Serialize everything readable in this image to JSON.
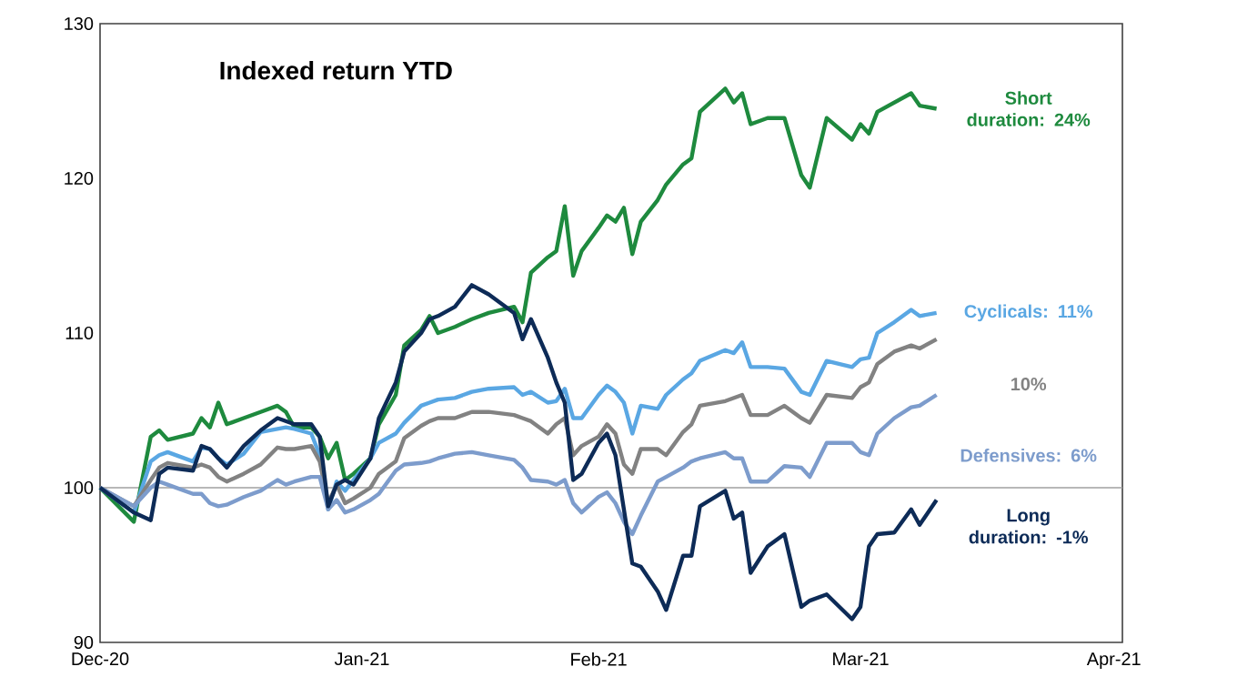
{
  "chart_data": {
    "type": "line",
    "title": "Indexed return YTD",
    "x": [
      "2020-12-31",
      "2021-01-04",
      "2021-01-06",
      "2021-01-07",
      "2021-01-08",
      "2021-01-11",
      "2021-01-12",
      "2021-01-13",
      "2021-01-14",
      "2021-01-15",
      "2021-01-17",
      "2021-01-19",
      "2021-01-21",
      "2021-01-22",
      "2021-01-23",
      "2021-01-25",
      "2021-01-26",
      "2021-01-27",
      "2021-01-28",
      "2021-01-29",
      "2021-01-30",
      "2021-02-01",
      "2021-02-02",
      "2021-02-04",
      "2021-02-05",
      "2021-02-07",
      "2021-02-08",
      "2021-02-09",
      "2021-02-11",
      "2021-02-13",
      "2021-02-15",
      "2021-02-18",
      "2021-02-19",
      "2021-02-20",
      "2021-02-22",
      "2021-02-23",
      "2021-02-24",
      "2021-02-25",
      "2021-02-26",
      "2021-02-28",
      "2021-03-01",
      "2021-03-02",
      "2021-03-03",
      "2021-03-04",
      "2021-03-05",
      "2021-03-07",
      "2021-03-08",
      "2021-03-10",
      "2021-03-11",
      "2021-03-12",
      "2021-03-15",
      "2021-03-16",
      "2021-03-17",
      "2021-03-18",
      "2021-03-20",
      "2021-03-22",
      "2021-03-24",
      "2021-03-25",
      "2021-03-27",
      "2021-03-30",
      "2021-03-31",
      "2021-04-01",
      "2021-04-02",
      "2021-04-04",
      "2021-04-06",
      "2021-04-07",
      "2021-04-09"
    ],
    "series": [
      {
        "name": "Short duration: 24%",
        "color": "#1e8a3e",
        "values": [
          100,
          97.8,
          103.3,
          103.7,
          103.1,
          103.5,
          104.5,
          103.9,
          105.5,
          104.1,
          104.5,
          104.9,
          105.3,
          104.9,
          103.9,
          103.9,
          103.3,
          101.9,
          102.9,
          100.5,
          100.9,
          101.9,
          104.1,
          106,
          109.2,
          110.2,
          111.1,
          110,
          110.4,
          110.9,
          111.3,
          111.7,
          110.7,
          113.9,
          114.9,
          115.3,
          118.2,
          113.7,
          115.3,
          116.8,
          117.6,
          117.2,
          118.1,
          115.1,
          117.2,
          118.6,
          119.6,
          120.9,
          121.3,
          124.3,
          125.8,
          124.9,
          125.5,
          123.5,
          123.9,
          123.9,
          120.2,
          119.4,
          123.9,
          122.5,
          123.5,
          122.9,
          124.3,
          124.9,
          125.5,
          124.7,
          124.5
        ]
      },
      {
        "name": "Cyclicals: 11%",
        "color": "#5aa7e3",
        "values": [
          100,
          98.4,
          101.7,
          102.1,
          102.3,
          101.7,
          102.6,
          102.5,
          101.9,
          101.5,
          102.2,
          103.6,
          103.8,
          103.9,
          103.8,
          103.5,
          102.1,
          98.6,
          100.4,
          99.8,
          100.5,
          101.9,
          102.9,
          103.5,
          104.2,
          105.3,
          105.5,
          105.7,
          105.8,
          106.2,
          106.4,
          106.5,
          106,
          106.2,
          105.5,
          105.6,
          106.4,
          104.5,
          104.5,
          106,
          106.6,
          106.2,
          105.5,
          103.5,
          105.3,
          105.1,
          106,
          107,
          107.4,
          108.2,
          108.9,
          108.7,
          109.4,
          107.8,
          107.8,
          107.7,
          106.2,
          106,
          108.2,
          107.8,
          108.3,
          108.4,
          110,
          110.7,
          111.5,
          111.1,
          111.3
        ]
      },
      {
        "name": "10%",
        "color": "#828282",
        "values": [
          100,
          98.8,
          100.5,
          101.3,
          101.6,
          101.3,
          101.5,
          101.3,
          100.7,
          100.4,
          100.9,
          101.5,
          102.6,
          102.5,
          102.5,
          102.7,
          101.7,
          99,
          100.2,
          99,
          99.3,
          100,
          100.9,
          101.7,
          103.2,
          104,
          104.3,
          104.5,
          104.5,
          104.9,
          104.9,
          104.7,
          104.5,
          104.3,
          103.5,
          104.1,
          104.5,
          102.1,
          102.7,
          103.3,
          104.1,
          103.5,
          101.5,
          100.9,
          102.5,
          102.5,
          102.1,
          103.6,
          104.1,
          105.3,
          105.6,
          105.8,
          106,
          104.7,
          104.7,
          105.3,
          104.5,
          104.2,
          106,
          105.8,
          106.5,
          106.8,
          108,
          108.8,
          109.2,
          109,
          109.6
        ]
      },
      {
        "name": "Defensives: 6%",
        "color": "#7d9ccc",
        "values": [
          100,
          98.8,
          100,
          100.4,
          100.2,
          99.6,
          99.6,
          99,
          98.8,
          98.9,
          99.4,
          99.8,
          100.5,
          100.2,
          100.4,
          100.7,
          100.7,
          98.6,
          99.2,
          98.4,
          98.6,
          99.2,
          99.6,
          101.1,
          101.5,
          101.6,
          101.7,
          101.9,
          102.2,
          102.3,
          102.1,
          101.8,
          101.3,
          100.5,
          100.4,
          100.2,
          100.5,
          99,
          98.4,
          99.4,
          99.7,
          99,
          97.8,
          97,
          98.2,
          100.4,
          100.7,
          101.3,
          101.7,
          101.9,
          102.3,
          101.9,
          101.9,
          100.4,
          100.4,
          101.4,
          101.3,
          100.7,
          102.9,
          102.9,
          102.3,
          102.1,
          103.5,
          104.5,
          105.2,
          105.3,
          106
        ]
      },
      {
        "name": "Long duration: -1%",
        "color": "#0d2b57",
        "values": [
          100,
          98.4,
          97.9,
          100.9,
          101.3,
          101.1,
          102.7,
          102.5,
          101.9,
          101.3,
          102.7,
          103.7,
          104.5,
          104.3,
          104.1,
          104.1,
          103.3,
          98.8,
          100.2,
          100.5,
          100.2,
          101.9,
          104.5,
          106.8,
          108.8,
          110,
          110.9,
          111.1,
          111.7,
          113.1,
          112.5,
          111.3,
          109.6,
          110.9,
          108.4,
          106.8,
          105.5,
          100.5,
          100.9,
          102.9,
          103.5,
          102.1,
          98.6,
          95.1,
          94.9,
          93.3,
          92.1,
          95.6,
          95.6,
          98.8,
          99.8,
          98,
          98.4,
          94.5,
          96.2,
          97,
          92.3,
          92.7,
          93.1,
          91.5,
          92.3,
          96.2,
          97,
          97.1,
          98.6,
          97.6,
          99.2
        ]
      }
    ],
    "xlim": [
      "2020-12-31",
      "2021-05-01"
    ],
    "xticks": [
      {
        "value": "2020-12-31",
        "label": "Dec-20"
      },
      {
        "value": "2021-01-31",
        "label": "Jan-21"
      },
      {
        "value": "2021-02-28",
        "label": "Feb-21"
      },
      {
        "value": "2021-03-31",
        "label": "Mar-21"
      },
      {
        "value": "2021-04-30",
        "label": "Apr-21"
      }
    ],
    "ylim": [
      90,
      130
    ],
    "yticks": [
      90,
      100,
      110,
      120,
      130
    ],
    "ref_lines": [
      {
        "axis": "y",
        "value": 100,
        "color": "#a0a0a0"
      }
    ]
  }
}
